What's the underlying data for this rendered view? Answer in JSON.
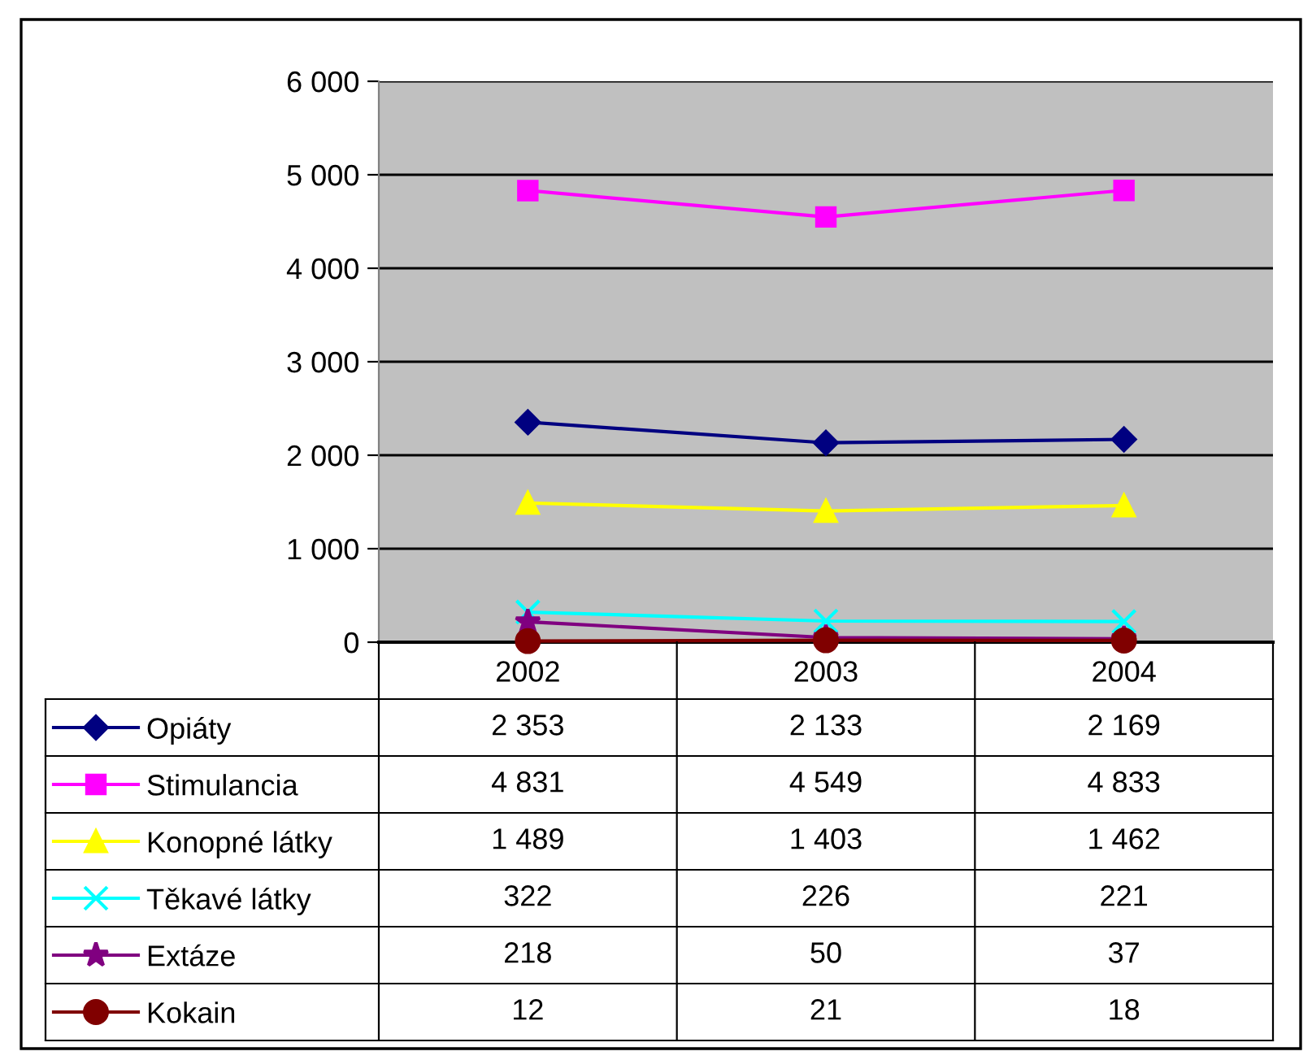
{
  "chart_data": {
    "type": "line",
    "categories": [
      "2002",
      "2003",
      "2004"
    ],
    "series": [
      {
        "name": "Opiáty",
        "color": "#000080",
        "marker": "diamond",
        "values": [
          2353,
          2133,
          2169
        ]
      },
      {
        "name": "Stimulancia",
        "color": "#ff00ff",
        "marker": "square",
        "values": [
          4831,
          4549,
          4833
        ]
      },
      {
        "name": "Konopné látky",
        "color": "#ffff00",
        "marker": "triangle",
        "values": [
          1489,
          1403,
          1462
        ]
      },
      {
        "name": "Těkavé látky",
        "color": "#00ffff",
        "marker": "cross",
        "values": [
          322,
          226,
          221
        ]
      },
      {
        "name": "Extáze",
        "color": "#800080",
        "marker": "star",
        "values": [
          218,
          50,
          37
        ]
      },
      {
        "name": "Kokain",
        "color": "#800000",
        "marker": "circle",
        "values": [
          12,
          21,
          18
        ]
      }
    ],
    "ylim": [
      0,
      6000
    ],
    "yticks": [
      {
        "value": 0,
        "label": "0"
      },
      {
        "value": 1000,
        "label": "1 000"
      },
      {
        "value": 2000,
        "label": "2 000"
      },
      {
        "value": 3000,
        "label": "3 000"
      },
      {
        "value": 4000,
        "label": "4 000"
      },
      {
        "value": 5000,
        "label": "5 000"
      },
      {
        "value": 6000,
        "label": "6 000"
      }
    ],
    "grid": "y",
    "legend": "bottom",
    "data_labels": true
  }
}
